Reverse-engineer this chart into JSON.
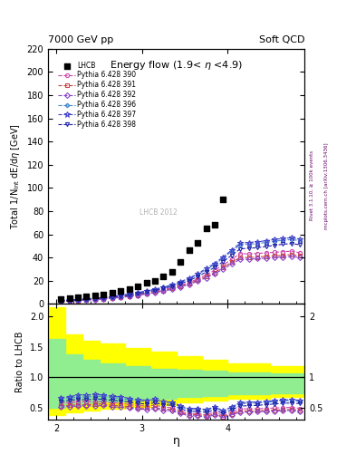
{
  "title_left": "7000 GeV pp",
  "title_right": "Soft QCD",
  "plot_title": "Energy flow (1.9< η <4.9)",
  "ylabel_main": "Total 1/N$_{int}$ dE/dη [GeV]",
  "ylabel_ratio": "Ratio to LHCB",
  "xlabel": "η",
  "right_label_top": "Rivet 3.1.10, ≥ 100k events",
  "right_label_bottom": "mcplots.cern.ch [arXiv:1306.3436]",
  "watermark": "LHCB 2012",
  "lhcb_x": [
    2.05,
    2.15,
    2.25,
    2.35,
    2.45,
    2.55,
    2.65,
    2.75,
    2.85,
    2.95,
    3.05,
    3.15,
    3.25,
    3.35,
    3.45,
    3.55,
    3.65,
    3.75,
    3.85,
    3.95
  ],
  "lhcb_y": [
    4.5,
    5.0,
    5.5,
    6.2,
    7.0,
    8.0,
    9.5,
    11.0,
    13.0,
    15.5,
    18.0,
    20.0,
    24.0,
    28.0,
    36.0,
    46.0,
    53.0,
    65.0,
    68.0,
    90.0
  ],
  "py390_x": [
    2.05,
    2.15,
    2.25,
    2.35,
    2.45,
    2.55,
    2.65,
    2.75,
    2.85,
    2.95,
    3.05,
    3.15,
    3.25,
    3.35,
    3.45,
    3.55,
    3.65,
    3.75,
    3.85,
    3.95,
    4.05,
    4.15,
    4.25,
    4.35,
    4.45,
    4.55,
    4.65,
    4.75,
    4.85
  ],
  "py390_y": [
    2.6,
    2.9,
    3.3,
    3.7,
    4.2,
    4.8,
    5.5,
    6.3,
    7.2,
    8.3,
    9.5,
    10.8,
    12.3,
    14.0,
    16.0,
    18.5,
    21.5,
    25.0,
    29.0,
    33.5,
    38.5,
    43.5,
    43.0,
    43.5,
    44.0,
    44.5,
    45.0,
    45.5,
    44.0
  ],
  "py391_x": [
    2.05,
    2.15,
    2.25,
    2.35,
    2.45,
    2.55,
    2.65,
    2.75,
    2.85,
    2.95,
    3.05,
    3.15,
    3.25,
    3.35,
    3.45,
    3.55,
    3.65,
    3.75,
    3.85,
    3.95,
    4.05,
    4.15,
    4.25,
    4.35,
    4.45,
    4.55,
    4.65,
    4.75,
    4.85
  ],
  "py391_y": [
    2.4,
    2.7,
    3.0,
    3.4,
    3.9,
    4.5,
    5.1,
    5.9,
    6.7,
    7.7,
    8.9,
    10.1,
    11.5,
    13.2,
    15.2,
    17.5,
    20.5,
    23.5,
    27.0,
    31.5,
    36.0,
    40.0,
    40.0,
    40.5,
    41.0,
    41.5,
    42.0,
    42.5,
    41.5
  ],
  "py392_x": [
    2.05,
    2.15,
    2.25,
    2.35,
    2.45,
    2.55,
    2.65,
    2.75,
    2.85,
    2.95,
    3.05,
    3.15,
    3.25,
    3.35,
    3.45,
    3.55,
    3.65,
    3.75,
    3.85,
    3.95,
    4.05,
    4.15,
    4.25,
    4.35,
    4.45,
    4.55,
    4.65,
    4.75,
    4.85
  ],
  "py392_y": [
    2.3,
    2.6,
    2.9,
    3.3,
    3.7,
    4.3,
    4.9,
    5.6,
    6.4,
    7.4,
    8.5,
    9.7,
    11.0,
    12.6,
    14.6,
    16.8,
    19.5,
    22.5,
    26.0,
    30.0,
    34.5,
    38.5,
    38.5,
    39.0,
    39.5,
    40.0,
    40.5,
    41.0,
    40.0
  ],
  "py396_x": [
    2.05,
    2.15,
    2.25,
    2.35,
    2.45,
    2.55,
    2.65,
    2.75,
    2.85,
    2.95,
    3.05,
    3.15,
    3.25,
    3.35,
    3.45,
    3.55,
    3.65,
    3.75,
    3.85,
    3.95,
    4.05,
    4.15,
    4.25,
    4.35,
    4.45,
    4.55,
    4.65,
    4.75,
    4.85
  ],
  "py396_y": [
    2.9,
    3.3,
    3.7,
    4.2,
    4.8,
    5.5,
    6.3,
    7.2,
    8.2,
    9.4,
    10.8,
    12.3,
    14.0,
    16.0,
    18.5,
    21.5,
    25.5,
    29.5,
    34.0,
    39.5,
    45.5,
    51.0,
    51.5,
    52.0,
    53.0,
    54.0,
    55.0,
    55.5,
    54.5
  ],
  "py397_x": [
    2.05,
    2.15,
    2.25,
    2.35,
    2.45,
    2.55,
    2.65,
    2.75,
    2.85,
    2.95,
    3.05,
    3.15,
    3.25,
    3.35,
    3.45,
    3.55,
    3.65,
    3.75,
    3.85,
    3.95,
    4.05,
    4.15,
    4.25,
    4.35,
    4.45,
    4.55,
    4.65,
    4.75,
    4.85
  ],
  "py397_y": [
    3.0,
    3.4,
    3.9,
    4.4,
    5.0,
    5.7,
    6.5,
    7.5,
    8.5,
    9.8,
    11.2,
    12.8,
    14.5,
    16.6,
    19.2,
    22.2,
    26.0,
    30.5,
    35.0,
    40.5,
    46.5,
    52.5,
    53.0,
    53.5,
    54.5,
    55.5,
    56.5,
    57.0,
    56.0
  ],
  "py398_x": [
    2.05,
    2.15,
    2.25,
    2.35,
    2.45,
    2.55,
    2.65,
    2.75,
    2.85,
    2.95,
    3.05,
    3.15,
    3.25,
    3.35,
    3.45,
    3.55,
    3.65,
    3.75,
    3.85,
    3.95,
    4.05,
    4.15,
    4.25,
    4.35,
    4.45,
    4.55,
    4.65,
    4.75,
    4.85
  ],
  "py398_y": [
    2.7,
    3.1,
    3.5,
    3.9,
    4.5,
    5.1,
    5.9,
    6.7,
    7.7,
    8.8,
    10.1,
    11.6,
    13.2,
    15.1,
    17.4,
    20.1,
    23.5,
    27.5,
    31.5,
    36.5,
    42.0,
    47.5,
    48.0,
    48.5,
    49.5,
    50.5,
    51.5,
    52.0,
    51.0
  ],
  "color_390": "#cc44aa",
  "color_391": "#cc4444",
  "color_392": "#8844cc",
  "color_396": "#4488cc",
  "color_397": "#4444cc",
  "color_398": "#2222aa",
  "marker_390": "o",
  "marker_391": "s",
  "marker_392": "D",
  "marker_396": "P",
  "marker_397": "*",
  "marker_398": "v",
  "ylim_main": [
    0,
    220
  ],
  "ylim_ratio": [
    0.3,
    2.2
  ],
  "xlim": [
    1.9,
    4.9
  ],
  "yellow_band_edges": [
    1.9,
    2.1,
    2.3,
    2.5,
    2.8,
    3.1,
    3.4,
    3.7,
    4.0,
    4.5,
    4.9
  ],
  "yellow_band_top": [
    2.15,
    1.7,
    1.6,
    1.55,
    1.48,
    1.42,
    1.35,
    1.28,
    1.22,
    1.18
  ],
  "yellow_band_bot": [
    0.38,
    0.43,
    0.45,
    0.48,
    0.52,
    0.55,
    0.58,
    0.62,
    0.65,
    0.68
  ],
  "green_band_edges": [
    1.9,
    2.1,
    2.3,
    2.5,
    2.8,
    3.1,
    3.4,
    3.7,
    4.0,
    4.5,
    4.9
  ],
  "green_band_top": [
    1.62,
    1.38,
    1.28,
    1.22,
    1.18,
    1.14,
    1.12,
    1.1,
    1.08,
    1.06
  ],
  "green_band_bot": [
    0.5,
    0.54,
    0.57,
    0.6,
    0.63,
    0.65,
    0.67,
    0.69,
    0.72,
    0.74
  ]
}
